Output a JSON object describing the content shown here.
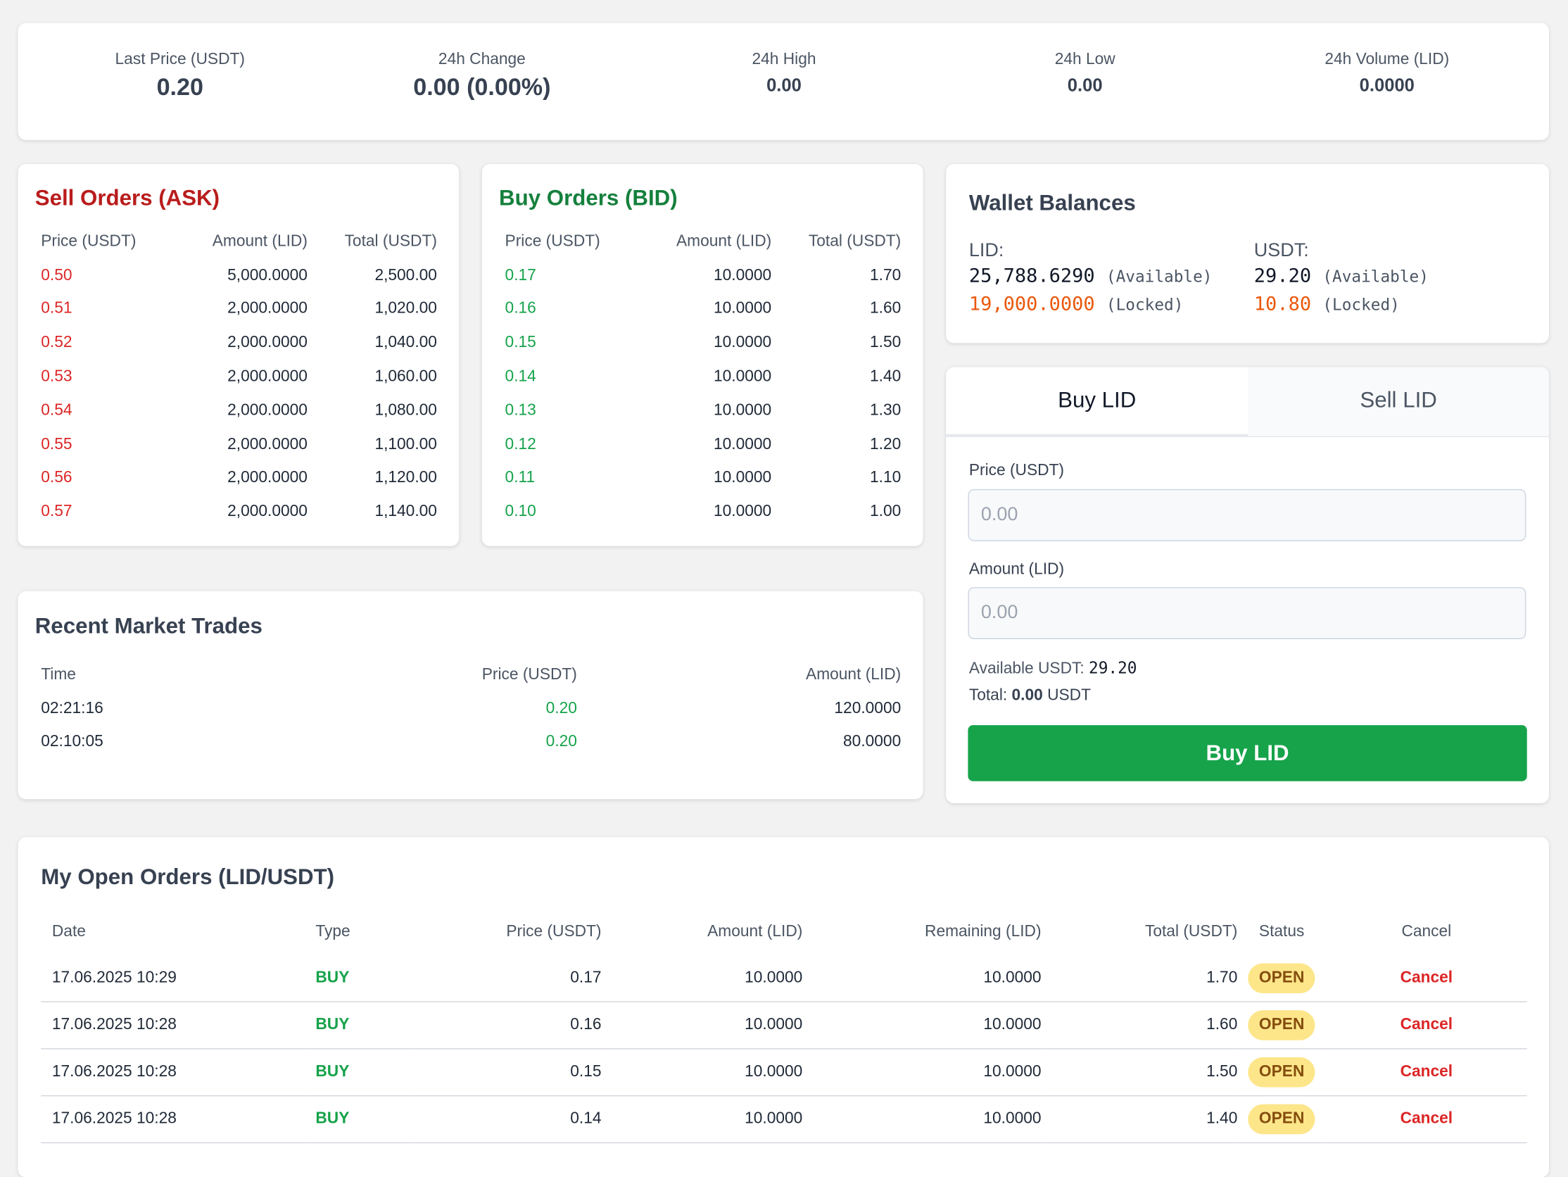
{
  "stats": [
    {
      "label": "Last Price (USDT)",
      "value": "0.20"
    },
    {
      "label": "24h Change",
      "value": "0.00 (0.00%)"
    },
    {
      "label": "24h High",
      "value": "0.00"
    },
    {
      "label": "24h Low",
      "value": "0.00"
    },
    {
      "label": "24h Volume (LID)",
      "value": "0.0000"
    }
  ],
  "sell_orders": {
    "title": "Sell Orders (ASK)",
    "headers": [
      "Price (USDT)",
      "Amount (LID)",
      "Total (USDT)"
    ],
    "rows": [
      [
        "0.50",
        "5,000.0000",
        "2,500.00"
      ],
      [
        "0.51",
        "2,000.0000",
        "1,020.00"
      ],
      [
        "0.52",
        "2,000.0000",
        "1,040.00"
      ],
      [
        "0.53",
        "2,000.0000",
        "1,060.00"
      ],
      [
        "0.54",
        "2,000.0000",
        "1,080.00"
      ],
      [
        "0.55",
        "2,000.0000",
        "1,100.00"
      ],
      [
        "0.56",
        "2,000.0000",
        "1,120.00"
      ],
      [
        "0.57",
        "2,000.0000",
        "1,140.00"
      ]
    ]
  },
  "buy_orders": {
    "title": "Buy Orders (BID)",
    "headers": [
      "Price (USDT)",
      "Amount (LID)",
      "Total (USDT)"
    ],
    "rows": [
      [
        "0.17",
        "10.0000",
        "1.70"
      ],
      [
        "0.16",
        "10.0000",
        "1.60"
      ],
      [
        "0.15",
        "10.0000",
        "1.50"
      ],
      [
        "0.14",
        "10.0000",
        "1.40"
      ],
      [
        "0.13",
        "10.0000",
        "1.30"
      ],
      [
        "0.12",
        "10.0000",
        "1.20"
      ],
      [
        "0.11",
        "10.0000",
        "1.10"
      ],
      [
        "0.10",
        "10.0000",
        "1.00"
      ]
    ]
  },
  "wallet": {
    "title": "Wallet Balances",
    "assets": [
      {
        "name": "LID:",
        "available": "25,788.6290",
        "available_label": "(Available)",
        "locked": "19,000.0000",
        "locked_label": "(Locked)"
      },
      {
        "name": "USDT:",
        "available": "29.20",
        "available_label": "(Available)",
        "locked": "10.80",
        "locked_label": "(Locked)"
      }
    ]
  },
  "trade_form": {
    "tabs": [
      "Buy LID",
      "Sell LID"
    ],
    "price_label": "Price (USDT)",
    "price_placeholder": "0.00",
    "amount_label": "Amount (LID)",
    "amount_placeholder": "0.00",
    "available_label": "Available USDT:",
    "available_value": "29.20",
    "total_label": "Total:",
    "total_value": "0.00",
    "total_unit": "USDT",
    "button": "Buy LID"
  },
  "recent_trades": {
    "title": "Recent Market Trades",
    "headers": [
      "Time",
      "Price (USDT)",
      "Amount (LID)"
    ],
    "rows": [
      [
        "02:21:16",
        "0.20",
        "120.0000"
      ],
      [
        "02:10:05",
        "0.20",
        "80.0000"
      ]
    ]
  },
  "open_orders": {
    "title": "My Open Orders (LID/USDT)",
    "headers": [
      "Date",
      "Type",
      "Price (USDT)",
      "Amount (LID)",
      "Remaining (LID)",
      "Total (USDT)",
      "Status",
      "Cancel"
    ],
    "rows": [
      [
        "17.06.2025 10:29",
        "BUY",
        "0.17",
        "10.0000",
        "10.0000",
        "1.70",
        "OPEN",
        "Cancel"
      ],
      [
        "17.06.2025 10:28",
        "BUY",
        "0.16",
        "10.0000",
        "10.0000",
        "1.60",
        "OPEN",
        "Cancel"
      ],
      [
        "17.06.2025 10:28",
        "BUY",
        "0.15",
        "10.0000",
        "10.0000",
        "1.50",
        "OPEN",
        "Cancel"
      ],
      [
        "17.06.2025 10:28",
        "BUY",
        "0.14",
        "10.0000",
        "10.0000",
        "1.40",
        "OPEN",
        "Cancel"
      ]
    ]
  }
}
